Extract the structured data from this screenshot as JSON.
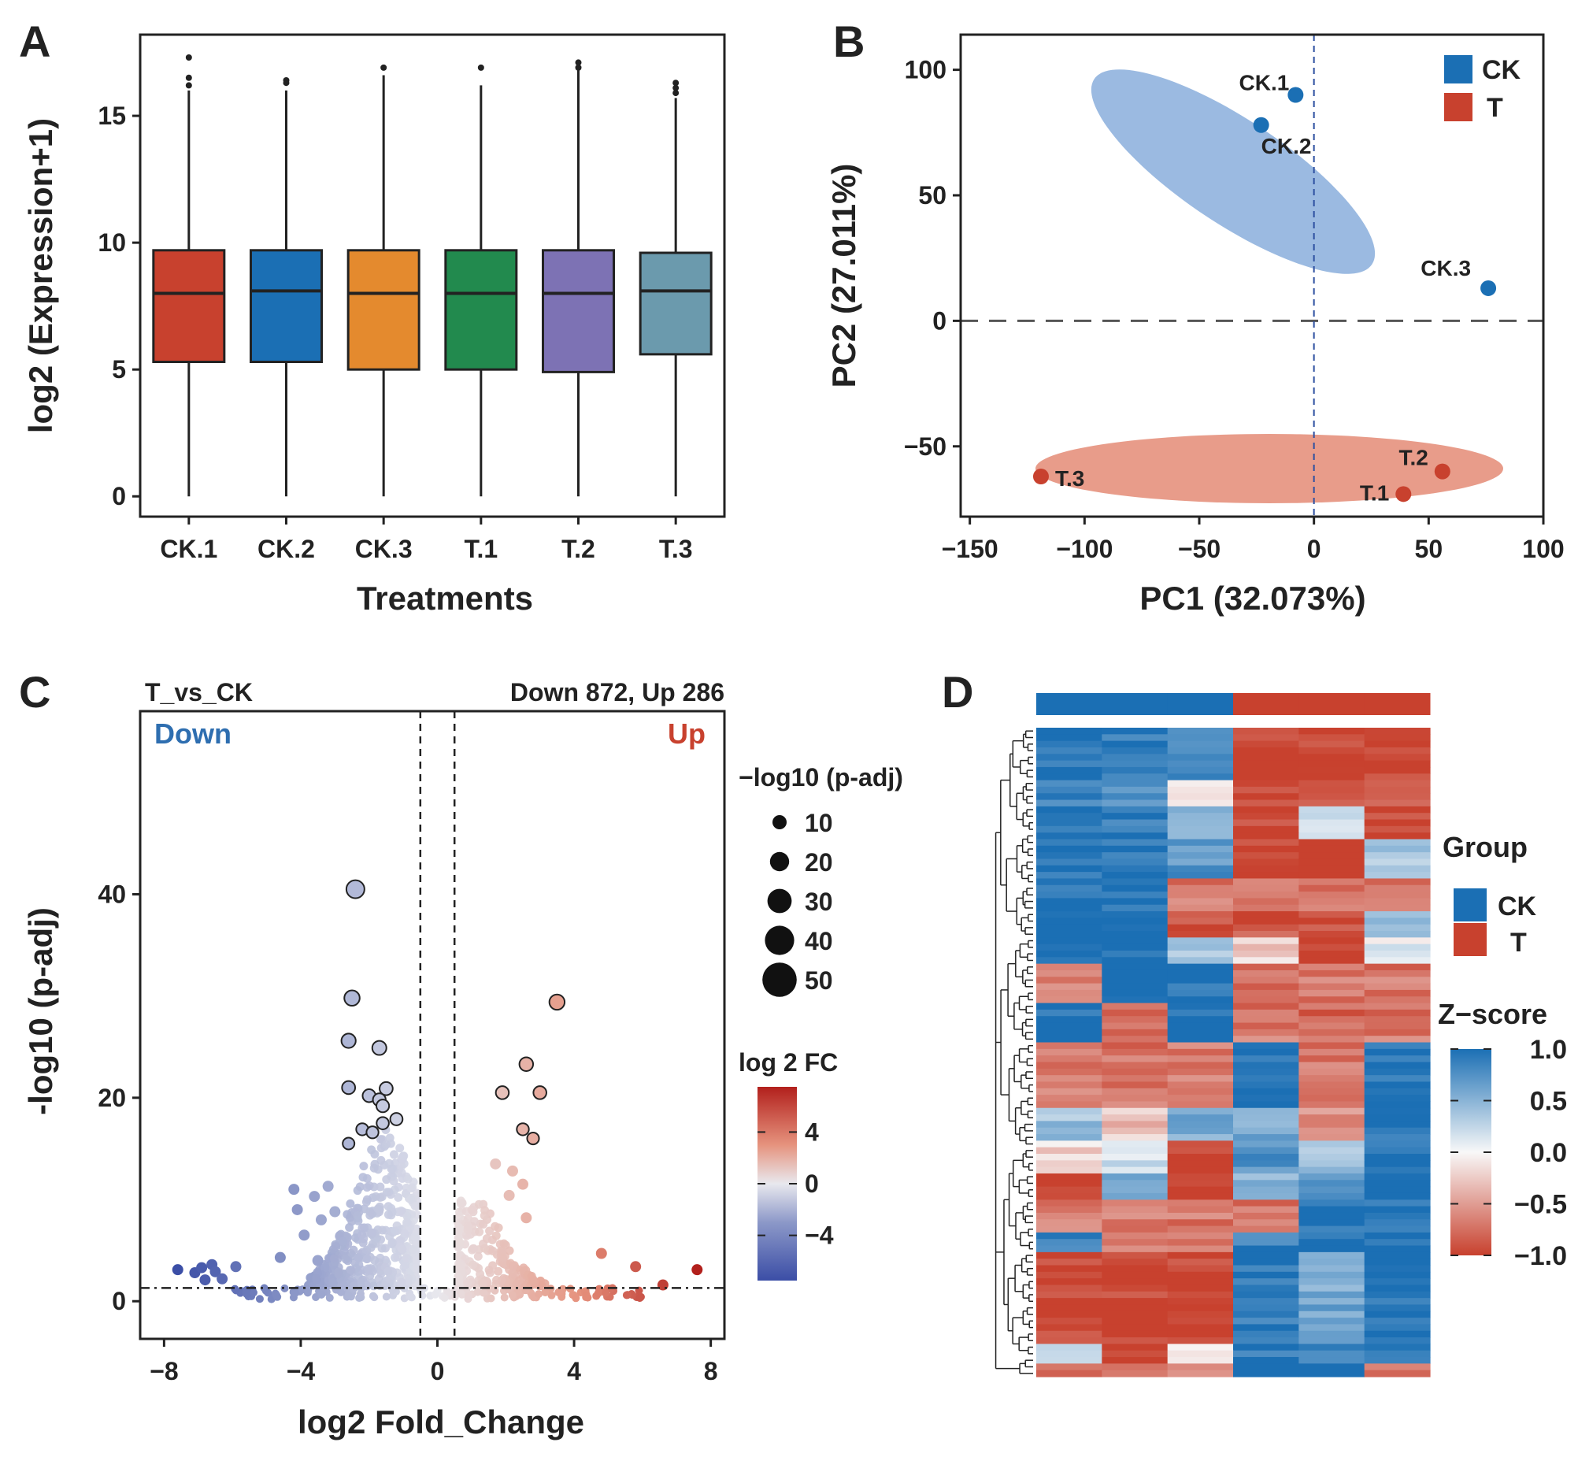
{
  "colors": {
    "red": "#c8412e",
    "blue": "#1b6fb4",
    "orange": "#e48a2e",
    "green": "#228a4e",
    "purple": "#7d72b4",
    "teal": "#6b9aad",
    "light_red": "#e07b63",
    "light_blue": "#8aaedc"
  },
  "chart_data": [
    {
      "panel": "A",
      "type": "box",
      "xlabel": "Treatments",
      "ylabel": "log2 (Expression+1)",
      "ylim": [
        -0.8,
        18.2
      ],
      "yticks": [
        0,
        5,
        10,
        15
      ],
      "categories": [
        "CK.1",
        "CK.2",
        "CK.3",
        "T.1",
        "T.2",
        "T.3"
      ],
      "boxes": [
        {
          "q1": 5.3,
          "median": 8.0,
          "q3": 9.7,
          "whisker_low": 0,
          "whisker_high": 16.0,
          "outliers": [
            16.2,
            16.5,
            17.3
          ],
          "color": "#c8412e"
        },
        {
          "q1": 5.3,
          "median": 8.1,
          "q3": 9.7,
          "whisker_low": 0,
          "whisker_high": 16.0,
          "outliers": [
            16.3,
            16.4
          ],
          "color": "#1b6fb4"
        },
        {
          "q1": 5.0,
          "median": 8.0,
          "q3": 9.7,
          "whisker_low": 0,
          "whisker_high": 16.6,
          "outliers": [
            16.9
          ],
          "color": "#e48a2e"
        },
        {
          "q1": 5.0,
          "median": 8.0,
          "q3": 9.7,
          "whisker_low": 0,
          "whisker_high": 16.2,
          "outliers": [
            16.9
          ],
          "color": "#228a4e"
        },
        {
          "q1": 4.9,
          "median": 8.0,
          "q3": 9.7,
          "whisker_low": 0,
          "whisker_high": 16.8,
          "outliers": [
            16.9,
            17.1
          ],
          "color": "#7d72b4"
        },
        {
          "q1": 5.6,
          "median": 8.1,
          "q3": 9.6,
          "whisker_low": 0,
          "whisker_high": 15.7,
          "outliers": [
            15.9,
            16.1,
            16.3
          ],
          "color": "#6b9aad"
        }
      ]
    },
    {
      "panel": "B",
      "type": "scatter",
      "xlabel": "PC1 (32.073%)",
      "ylabel": "PC2 (27.011%)",
      "xlim": [
        -154,
        100
      ],
      "ylim": [
        -78,
        114
      ],
      "xticks": [
        -150,
        -100,
        -50,
        0,
        50,
        100
      ],
      "yticks": [
        -50,
        0,
        50,
        100
      ],
      "legend": [
        {
          "name": "CK",
          "color": "#1b6fb4"
        },
        {
          "name": "T",
          "color": "#c8412e"
        }
      ],
      "points": [
        {
          "label": "CK.1",
          "group": "CK",
          "x": -8,
          "y": 90
        },
        {
          "label": "CK.2",
          "group": "CK",
          "x": -23,
          "y": 78
        },
        {
          "label": "CK.3",
          "group": "CK",
          "x": 76,
          "y": 13
        },
        {
          "label": "T.1",
          "group": "T",
          "x": 39,
          "y": -69
        },
        {
          "label": "T.2",
          "group": "T",
          "x": 56,
          "y": -60
        },
        {
          "label": "T.3",
          "group": "T",
          "x": -119,
          "y": -62
        }
      ],
      "reference_lines": {
        "x": 0,
        "y": 0
      }
    },
    {
      "panel": "C",
      "type": "scatter",
      "subtype": "volcano",
      "title_left": "T_vs_CK",
      "title_right": "Down 872, Up 286",
      "label_down": "Down",
      "label_up": "Up",
      "xlabel": "log2 Fold_Change",
      "ylabel": "-log10 (p-adj)",
      "xlim": [
        -8.7,
        8.4
      ],
      "ylim": [
        -3.7,
        58
      ],
      "xticks": [
        -8,
        -4,
        0,
        4,
        8
      ],
      "yticks": [
        0,
        20,
        40
      ],
      "fc_threshold": [
        -0.5,
        0.5
      ],
      "padj_threshold": 1.3,
      "size_legend_title": "−log10 (p-adj)",
      "size_legend": [
        10,
        20,
        30,
        40,
        50
      ],
      "color_legend_title": "log 2 FC",
      "color_legend_ticks": [
        4,
        0,
        -4
      ],
      "color_range": [
        -7.5,
        7.5
      ],
      "highlighted_points": [
        {
          "x": -2.4,
          "y": 40.5
        },
        {
          "x": -2.5,
          "y": 29.8
        },
        {
          "x": -2.6,
          "y": 25.6
        },
        {
          "x": -1.7,
          "y": 24.9
        },
        {
          "x": -2.6,
          "y": 21.0
        },
        {
          "x": -1.5,
          "y": 20.9
        },
        {
          "x": -2.0,
          "y": 20.2
        },
        {
          "x": -1.7,
          "y": 19.8
        },
        {
          "x": -1.6,
          "y": 19.2
        },
        {
          "x": -1.2,
          "y": 17.9
        },
        {
          "x": -1.6,
          "y": 17.5
        },
        {
          "x": -2.2,
          "y": 16.9
        },
        {
          "x": -1.9,
          "y": 16.6
        },
        {
          "x": -2.6,
          "y": 15.5
        },
        {
          "x": 3.5,
          "y": 29.4
        },
        {
          "x": 2.6,
          "y": 23.3
        },
        {
          "x": 1.9,
          "y": 20.5
        },
        {
          "x": 3.0,
          "y": 20.5
        },
        {
          "x": 2.5,
          "y": 16.9
        },
        {
          "x": 2.8,
          "y": 16.0
        }
      ],
      "points": [
        {
          "x": -7.6,
          "y": 3.1
        },
        {
          "x": -7.1,
          "y": 2.8
        },
        {
          "x": -6.9,
          "y": 3.3
        },
        {
          "x": -6.8,
          "y": 2.1
        },
        {
          "x": -6.6,
          "y": 3.6
        },
        {
          "x": -6.5,
          "y": 2.9
        },
        {
          "x": -6.3,
          "y": 2.2
        },
        {
          "x": -5.9,
          "y": 3.4
        },
        {
          "x": -4.2,
          "y": 11.0
        },
        {
          "x": -4.1,
          "y": 9.0
        },
        {
          "x": -3.6,
          "y": 10.3
        },
        {
          "x": -3.2,
          "y": 11.3
        },
        {
          "x": -3.4,
          "y": 8.0
        },
        {
          "x": -3.0,
          "y": 8.8
        },
        {
          "x": -4.6,
          "y": 4.3
        },
        {
          "x": -3.9,
          "y": 6.5
        },
        {
          "x": -3.5,
          "y": 4.0
        },
        {
          "x": 4.8,
          "y": 4.7
        },
        {
          "x": 5.8,
          "y": 3.4
        },
        {
          "x": 7.6,
          "y": 3.1
        },
        {
          "x": 6.6,
          "y": 1.6
        },
        {
          "x": 1.7,
          "y": 13.5
        },
        {
          "x": 2.2,
          "y": 12.8
        },
        {
          "x": 2.5,
          "y": 11.5
        },
        {
          "x": 2.1,
          "y": 10.4
        },
        {
          "x": 2.6,
          "y": 8.2
        }
      ]
    },
    {
      "panel": "D",
      "type": "heatmap",
      "legend_group_title": "Group",
      "groups": [
        {
          "name": "CK",
          "color": "#1b6fb4"
        },
        {
          "name": "T",
          "color": "#c8412e"
        }
      ],
      "column_groups": [
        "CK",
        "CK",
        "CK",
        "T",
        "T",
        "T"
      ],
      "zscore_title": "Z−score",
      "zscore_ticks": [
        "1.0",
        "0.5",
        "0.0",
        "−0.5",
        "−1.0"
      ],
      "zscore_range": [
        -1.0,
        1.0
      ],
      "row_blocks": [
        {
          "rows": 8,
          "values": [
            1.0,
            0.9,
            0.8,
            -1.0,
            -1.0,
            -1.0
          ]
        },
        {
          "rows": 4,
          "values": [
            0.9,
            0.8,
            -0.1,
            -1.0,
            -0.9,
            -0.8
          ]
        },
        {
          "rows": 5,
          "values": [
            1.0,
            0.9,
            0.5,
            -1.0,
            0.2,
            -1.0
          ]
        },
        {
          "rows": 6,
          "values": [
            1.0,
            0.9,
            0.7,
            -1.0,
            -1.0,
            0.4
          ]
        },
        {
          "rows": 5,
          "values": [
            1.0,
            1.0,
            -0.7,
            -0.7,
            -0.7,
            -0.7
          ]
        },
        {
          "rows": 4,
          "values": [
            1.0,
            1.0,
            -0.9,
            -0.9,
            -0.9,
            0.5
          ]
        },
        {
          "rows": 4,
          "values": [
            1.0,
            1.0,
            0.3,
            -0.2,
            -1.0,
            0.1
          ]
        },
        {
          "rows": 6,
          "values": [
            -0.7,
            1.0,
            1.0,
            -0.7,
            -0.7,
            -0.7
          ]
        },
        {
          "rows": 6,
          "values": [
            1.0,
            -0.7,
            1.0,
            -0.7,
            -0.8,
            -0.7
          ]
        },
        {
          "rows": 10,
          "values": [
            -0.7,
            -0.7,
            -0.7,
            1.0,
            -0.7,
            1.0
          ]
        },
        {
          "rows": 5,
          "values": [
            0.4,
            -0.3,
            0.6,
            0.6,
            -0.6,
            1.0
          ]
        },
        {
          "rows": 5,
          "values": [
            -0.2,
            0.2,
            -1.0,
            0.7,
            0.4,
            1.0
          ]
        },
        {
          "rows": 4,
          "values": [
            -1.0,
            0.6,
            -1.0,
            0.5,
            0.8,
            1.0
          ]
        },
        {
          "rows": 5,
          "values": [
            -0.7,
            -0.7,
            -0.7,
            -0.7,
            1.0,
            1.0
          ]
        },
        {
          "rows": 3,
          "values": [
            0.9,
            -0.7,
            -0.7,
            0.9,
            1.0,
            1.0
          ]
        },
        {
          "rows": 14,
          "values": [
            -1.0,
            -1.0,
            -1.0,
            0.9,
            0.6,
            1.0
          ]
        },
        {
          "rows": 3,
          "values": [
            0.3,
            -1.0,
            -0.1,
            0.9,
            0.8,
            1.0
          ]
        },
        {
          "rows": 2,
          "values": [
            -0.7,
            -0.7,
            -0.7,
            1.0,
            1.0,
            -0.7
          ]
        }
      ]
    }
  ]
}
